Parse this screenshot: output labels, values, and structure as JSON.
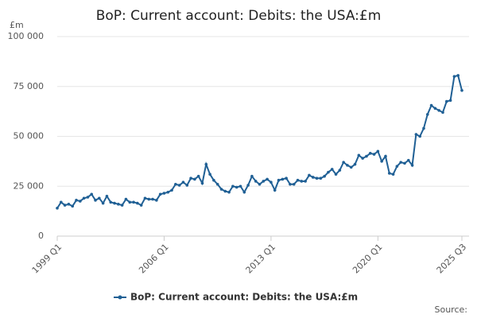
{
  "chart_data": {
    "type": "line",
    "title": "BoP: Current account: Debits: the USA:£m",
    "y_label": "£m",
    "source": "Source:",
    "categories": [
      "1999 Q1",
      null,
      null,
      null,
      null,
      null,
      null,
      null,
      null,
      null,
      null,
      null,
      null,
      null,
      null,
      null,
      null,
      null,
      null,
      null,
      null,
      null,
      null,
      null,
      null,
      null,
      null,
      null,
      "2006 Q1",
      null,
      null,
      null,
      null,
      null,
      null,
      null,
      null,
      null,
      null,
      null,
      null,
      null,
      null,
      null,
      null,
      null,
      null,
      null,
      null,
      null,
      null,
      null,
      null,
      null,
      null,
      null,
      "2013 Q1",
      null,
      null,
      null,
      null,
      null,
      null,
      null,
      null,
      null,
      null,
      null,
      null,
      null,
      null,
      null,
      null,
      null,
      null,
      null,
      null,
      null,
      null,
      null,
      null,
      null,
      null,
      null,
      "2020 Q1",
      null,
      null,
      null,
      null,
      null,
      null,
      null,
      null,
      null,
      null,
      null,
      null,
      null,
      null,
      null,
      null,
      null,
      null,
      null,
      null,
      null,
      "2025 Q3"
    ],
    "series": [
      {
        "name": "BoP: Current account: Debits: the USA:£m",
        "color": "#206095",
        "values": [
          14000,
          17000,
          15500,
          16000,
          15000,
          18000,
          17500,
          19000,
          19500,
          21000,
          18000,
          19000,
          16500,
          20000,
          17000,
          16500,
          16000,
          15500,
          18500,
          17000,
          17000,
          16500,
          15500,
          19000,
          18500,
          18500,
          18000,
          21000,
          21500,
          22000,
          23000,
          26000,
          25500,
          27000,
          25500,
          29000,
          28500,
          30000,
          26500,
          36000,
          31000,
          28000,
          26000,
          23500,
          22500,
          22000,
          25000,
          24500,
          25000,
          22000,
          25500,
          30000,
          27500,
          26000,
          27500,
          28500,
          27000,
          23000,
          28000,
          28500,
          29000,
          26000,
          26000,
          28000,
          27500,
          27500,
          30500,
          29500,
          29000,
          29000,
          30000,
          32000,
          33500,
          31000,
          33000,
          37000,
          35500,
          34500,
          36000,
          40500,
          39000,
          40000,
          41500,
          41000,
          42500,
          37500,
          40000,
          31500,
          31000,
          35000,
          37000,
          36500,
          38000,
          35500,
          51000,
          50000,
          54000,
          61000,
          65500,
          64000,
          63000,
          62000,
          67500,
          68000,
          80000,
          80500,
          73000
        ]
      }
    ],
    "ylim": [
      0,
      100000
    ],
    "yticks": [
      0,
      {
        "value": 25000,
        "label": "25 000"
      },
      {
        "value": 50000,
        "label": "50 000"
      },
      {
        "value": 75000,
        "label": "75 000"
      },
      {
        "value": 100000,
        "label": "100 000"
      }
    ],
    "grid": true
  }
}
